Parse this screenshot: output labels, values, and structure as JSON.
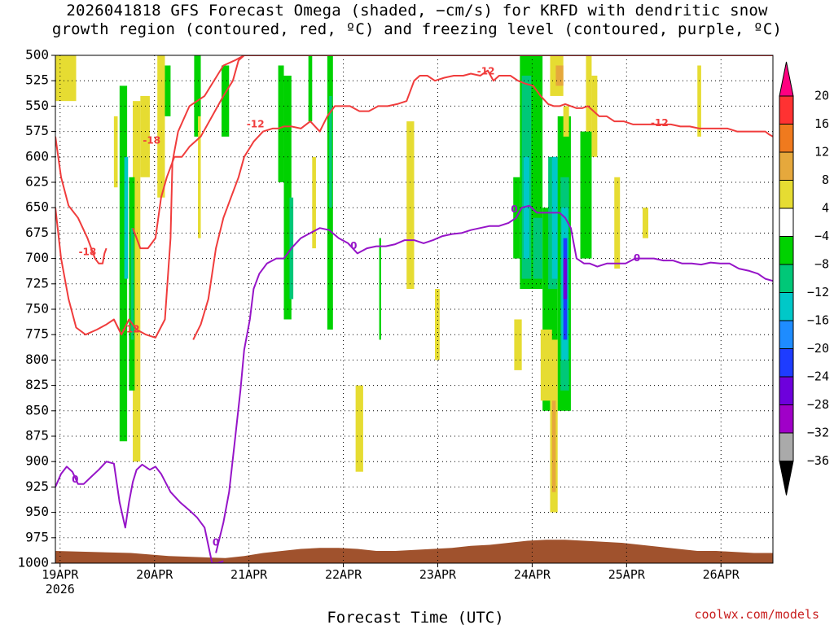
{
  "title_lines": [
    "2026041818 GFS Forecast Omega (shaded, −cm/s) for KRFD with dendritic snow",
    "growth region (contoured, red, ºC) and freezing level (contoured, purple, ºC)"
  ],
  "credit": "coolwx.com/models",
  "chart_data": {
    "type": "heatmap",
    "title": "2026041818 GFS Forecast Omega (shaded, −cm/s) for KRFD with dendritic snow growth region (contoured, red, ºC) and freezing level (contoured, purple, ºC)",
    "xlabel": "Forecast Time (UTC)",
    "ylabel": "",
    "x_unit": "days since 2026-04-18 18Z",
    "xlim": [
      0.2,
      7.8
    ],
    "ylim": [
      1000,
      500
    ],
    "y_ticks": [
      500,
      525,
      550,
      575,
      600,
      625,
      650,
      675,
      700,
      725,
      750,
      775,
      800,
      825,
      850,
      875,
      900,
      925,
      950,
      975,
      1000
    ],
    "x_ticks": [
      {
        "x": 0.25,
        "label": "19APR",
        "sub": "2026"
      },
      {
        "x": 1.25,
        "label": "20APR"
      },
      {
        "x": 2.25,
        "label": "21APR"
      },
      {
        "x": 3.25,
        "label": "22APR"
      },
      {
        "x": 4.25,
        "label": "23APR"
      },
      {
        "x": 5.25,
        "label": "24APR"
      },
      {
        "x": 6.25,
        "label": "25APR"
      },
      {
        "x": 7.25,
        "label": "26APR"
      }
    ],
    "grid": true,
    "colorbar": {
      "labels": [
        20,
        16,
        12,
        8,
        4,
        -4,
        -8,
        -12,
        -16,
        -20,
        -24,
        -28,
        -32,
        -36
      ],
      "colors": [
        "#ff0080",
        "#ff3232",
        "#f07a1e",
        "#e6a83c",
        "#e6dc32",
        "#ffffff",
        "#00d200",
        "#00c878",
        "#00c8c8",
        "#1e8cff",
        "#1e3cff",
        "#6e00dc",
        "#a000c8",
        "#aaaaaa",
        "#000000"
      ]
    },
    "omega_cells": [
      {
        "x0": 0.2,
        "x1": 0.42,
        "p_top": 500,
        "p_bot": 545,
        "v": 6
      },
      {
        "x0": 0.82,
        "x1": 0.86,
        "p_top": 560,
        "p_bot": 630,
        "v": 6
      },
      {
        "x0": 1.02,
        "x1": 1.1,
        "p_top": 545,
        "p_bot": 900,
        "v": 6
      },
      {
        "x0": 1.1,
        "x1": 1.2,
        "p_top": 540,
        "p_bot": 620,
        "v": 6
      },
      {
        "x0": 0.88,
        "x1": 0.96,
        "p_top": 530,
        "p_bot": 880,
        "v": -6
      },
      {
        "x0": 0.93,
        "x1": 0.97,
        "p_top": 600,
        "p_bot": 720,
        "v": -14
      },
      {
        "x0": 0.98,
        "x1": 1.04,
        "p_top": 620,
        "p_bot": 830,
        "v": -6
      },
      {
        "x0": 1.0,
        "x1": 1.03,
        "p_top": 670,
        "p_bot": 780,
        "v": -10
      },
      {
        "x0": 1.28,
        "x1": 1.36,
        "p_top": 500,
        "p_bot": 640,
        "v": 6
      },
      {
        "x0": 1.36,
        "x1": 1.42,
        "p_top": 510,
        "p_bot": 560,
        "v": -6
      },
      {
        "x0": 1.67,
        "x1": 1.74,
        "p_top": 500,
        "p_bot": 580,
        "v": -6
      },
      {
        "x0": 1.71,
        "x1": 1.74,
        "p_top": 560,
        "p_bot": 680,
        "v": 6
      },
      {
        "x0": 1.96,
        "x1": 2.04,
        "p_top": 510,
        "p_bot": 580,
        "v": -6
      },
      {
        "x0": 2.56,
        "x1": 2.62,
        "p_top": 510,
        "p_bot": 625,
        "v": -6
      },
      {
        "x0": 2.62,
        "x1": 2.7,
        "p_top": 520,
        "p_bot": 760,
        "v": -6
      },
      {
        "x0": 2.68,
        "x1": 2.72,
        "p_top": 640,
        "p_bot": 740,
        "v": -10
      },
      {
        "x0": 2.88,
        "x1": 2.92,
        "p_top": 500,
        "p_bot": 565,
        "v": -6
      },
      {
        "x0": 3.08,
        "x1": 3.14,
        "p_top": 500,
        "p_bot": 770,
        "v": -6
      },
      {
        "x0": 3.1,
        "x1": 3.13,
        "p_top": 540,
        "p_bot": 650,
        "v": -10
      },
      {
        "x0": 2.92,
        "x1": 2.96,
        "p_top": 600,
        "p_bot": 690,
        "v": 6
      },
      {
        "x0": 3.92,
        "x1": 4.0,
        "p_top": 565,
        "p_bot": 730,
        "v": 6
      },
      {
        "x0": 3.38,
        "x1": 3.46,
        "p_top": 825,
        "p_bot": 910,
        "v": 6
      },
      {
        "x0": 3.63,
        "x1": 3.65,
        "p_top": 680,
        "p_bot": 780,
        "v": -6
      },
      {
        "x0": 4.22,
        "x1": 4.27,
        "p_top": 730,
        "p_bot": 800,
        "v": 6
      },
      {
        "x0": 5.05,
        "x1": 5.12,
        "p_top": 620,
        "p_bot": 700,
        "v": -6
      },
      {
        "x0": 5.12,
        "x1": 5.36,
        "p_top": 500,
        "p_bot": 730,
        "v": -6
      },
      {
        "x0": 5.14,
        "x1": 5.24,
        "p_top": 520,
        "p_bot": 720,
        "v": -10
      },
      {
        "x0": 5.16,
        "x1": 5.22,
        "p_top": 600,
        "p_bot": 700,
        "v": -14
      },
      {
        "x0": 5.26,
        "x1": 5.36,
        "p_top": 660,
        "p_bot": 720,
        "v": -10
      },
      {
        "x0": 5.36,
        "x1": 5.52,
        "p_top": 650,
        "p_bot": 850,
        "v": -6
      },
      {
        "x0": 5.42,
        "x1": 5.52,
        "p_top": 600,
        "p_bot": 730,
        "v": -10
      },
      {
        "x0": 5.46,
        "x1": 5.62,
        "p_top": 600,
        "p_bot": 720,
        "v": -14
      },
      {
        "x0": 5.52,
        "x1": 5.66,
        "p_top": 560,
        "p_bot": 850,
        "v": -6
      },
      {
        "x0": 5.55,
        "x1": 5.64,
        "p_top": 620,
        "p_bot": 830,
        "v": -10
      },
      {
        "x0": 5.56,
        "x1": 5.63,
        "p_top": 650,
        "p_bot": 800,
        "v": -14
      },
      {
        "x0": 5.58,
        "x1": 5.62,
        "p_top": 680,
        "p_bot": 780,
        "v": -20
      },
      {
        "x0": 5.58,
        "x1": 5.62,
        "p_top": 700,
        "p_bot": 740,
        "v": -24
      },
      {
        "x0": 5.34,
        "x1": 5.46,
        "p_top": 770,
        "p_bot": 840,
        "v": 6
      },
      {
        "x0": 5.44,
        "x1": 5.52,
        "p_top": 780,
        "p_bot": 950,
        "v": 6
      },
      {
        "x0": 5.46,
        "x1": 5.5,
        "p_top": 840,
        "p_bot": 930,
        "v": 10
      },
      {
        "x0": 5.06,
        "x1": 5.14,
        "p_top": 760,
        "p_bot": 810,
        "v": 6
      },
      {
        "x0": 5.44,
        "x1": 5.58,
        "p_top": 500,
        "p_bot": 540,
        "v": 6
      },
      {
        "x0": 5.5,
        "x1": 5.58,
        "p_top": 510,
        "p_bot": 530,
        "v": 10
      },
      {
        "x0": 5.58,
        "x1": 5.64,
        "p_top": 550,
        "p_bot": 580,
        "v": 6
      },
      {
        "x0": 5.76,
        "x1": 5.88,
        "p_top": 575,
        "p_bot": 700,
        "v": -6
      },
      {
        "x0": 5.88,
        "x1": 5.94,
        "p_top": 520,
        "p_bot": 600,
        "v": 6
      },
      {
        "x0": 5.82,
        "x1": 5.88,
        "p_top": 500,
        "p_bot": 575,
        "v": 6
      },
      {
        "x0": 6.12,
        "x1": 6.18,
        "p_top": 620,
        "p_bot": 710,
        "v": 6
      },
      {
        "x0": 6.42,
        "x1": 6.48,
        "p_top": 650,
        "p_bot": 680,
        "v": 6
      },
      {
        "x0": 7.0,
        "x1": 7.04,
        "p_top": 510,
        "p_bot": 580,
        "v": 6
      }
    ],
    "contours": [
      {
        "kind": "dgz",
        "label": "-12",
        "color": "#f03c3c",
        "x": [
          0.2,
          0.26,
          0.34,
          0.42,
          0.52,
          0.64,
          0.74,
          0.82,
          0.9,
          0.98,
          1.06,
          1.16,
          1.26,
          1.36,
          1.42,
          1.44,
          1.5,
          1.62,
          1.78,
          1.98,
          2.1,
          2.2,
          2.32,
          2.44,
          2.56,
          2.64,
          2.72,
          2.8,
          2.9,
          3.0,
          3.1,
          3.16,
          3.24,
          3.34,
          3.46,
          3.6,
          3.74,
          3.86,
          3.96,
          4.06,
          4.16,
          4.26,
          4.36,
          4.46,
          4.54,
          4.64,
          4.74,
          4.86,
          4.98,
          5.06,
          5.14,
          5.22,
          5.3,
          5.38,
          5.46,
          5.54,
          5.62,
          5.7,
          5.78,
          5.84,
          5.9,
          6.0,
          6.1,
          6.2,
          6.3,
          6.4,
          6.5,
          6.6,
          6.7,
          6.8,
          6.9,
          7.0,
          7.1,
          7.2,
          7.3,
          7.4,
          7.5,
          7.6,
          7.68,
          7.72,
          7.78,
          7.8
        ],
        "p": [
          650,
          700,
          740,
          768,
          775,
          770,
          765,
          760,
          775,
          760,
          770,
          775,
          778,
          760,
          680,
          605,
          575,
          550,
          540,
          510,
          505,
          500,
          500,
          500,
          500,
          500,
          500,
          500,
          500,
          500,
          500,
          500,
          500,
          500,
          500,
          500,
          500,
          500,
          500,
          500,
          500,
          500,
          500,
          500,
          500,
          500,
          500,
          500,
          500,
          500,
          500,
          500,
          500,
          500,
          500,
          500,
          500,
          500,
          500,
          500,
          500,
          500,
          500,
          500,
          500,
          500,
          500,
          500,
          500,
          500,
          500,
          500,
          500,
          500,
          500,
          500,
          500,
          500,
          500,
          500,
          500,
          500
        ]
      },
      {
        "kind": "dgz",
        "label": "-18",
        "color": "#f03c3c",
        "x": [
          0.2,
          0.26,
          0.34,
          0.44,
          0.54,
          0.62,
          0.66,
          0.7,
          0.72,
          0.74
        ],
        "p": [
          580,
          620,
          648,
          660,
          680,
          700,
          705,
          705,
          695,
          690
        ]
      },
      {
        "kind": "dgz",
        "label": "-18",
        "color": "#f03c3c",
        "x": [
          1.02,
          1.1,
          1.18,
          1.26,
          1.32,
          1.38,
          1.46,
          1.54,
          1.62,
          1.74,
          1.86,
          1.98,
          2.08,
          2.14,
          2.2,
          2.26,
          2.34,
          2.4,
          2.46
        ],
        "p": [
          670,
          690,
          690,
          680,
          640,
          620,
          600,
          600,
          590,
          580,
          560,
          540,
          525,
          505,
          500,
          500,
          500,
          500,
          500
        ]
      },
      {
        "kind": "dgz",
        "label": "-12",
        "color": "#f03c3c",
        "x": [
          1.66,
          1.74,
          1.82,
          1.9,
          1.98,
          2.06,
          2.14,
          2.2,
          2.3,
          2.4,
          2.5,
          2.56,
          2.62,
          2.7,
          2.8,
          2.9,
          3.0,
          3.08,
          3.16,
          3.24,
          3.32,
          3.42,
          3.52,
          3.62,
          3.72,
          3.82,
          3.92,
          4.0,
          4.06,
          4.14,
          4.22,
          4.32,
          4.42,
          4.52,
          4.6,
          4.7,
          4.78,
          4.84,
          4.9,
          4.96,
          5.02,
          5.1,
          5.18,
          5.26,
          5.34,
          5.42,
          5.48,
          5.54,
          5.6,
          5.66,
          5.72,
          5.78,
          5.84,
          5.9,
          5.96,
          6.04,
          6.12,
          6.22,
          6.32,
          6.42,
          6.52,
          6.62,
          6.72,
          6.82,
          6.92,
          7.02,
          7.12,
          7.22,
          7.32,
          7.42,
          7.5,
          7.58,
          7.66,
          7.72,
          7.76,
          7.8
        ],
        "p": [
          780,
          765,
          740,
          690,
          660,
          640,
          620,
          600,
          585,
          575,
          572,
          572,
          570,
          570,
          572,
          565,
          575,
          560,
          550,
          550,
          550,
          555,
          555,
          550,
          550,
          548,
          545,
          525,
          520,
          520,
          525,
          522,
          520,
          520,
          518,
          520,
          515,
          525,
          520,
          520,
          520,
          525,
          528,
          530,
          540,
          548,
          550,
          550,
          548,
          550,
          552,
          552,
          550,
          555,
          560,
          560,
          565,
          565,
          568,
          568,
          568,
          568,
          568,
          570,
          570,
          572,
          572,
          572,
          572,
          575,
          575,
          575,
          575,
          575,
          578,
          580
        ]
      },
      {
        "kind": "frz",
        "label": "0",
        "color": "#9614c8",
        "x": [
          0.2,
          0.26,
          0.32,
          0.38,
          0.44,
          0.5,
          0.58,
          0.66,
          0.74,
          0.82,
          0.88,
          0.94,
          0.98,
          1.02,
          1.06,
          1.12,
          1.2,
          1.26,
          1.32,
          1.42,
          1.52,
          1.62,
          1.7,
          1.78,
          1.86,
          1.92,
          1.98
        ],
        "p": [
          925,
          912,
          905,
          910,
          922,
          922,
          915,
          908,
          900,
          902,
          940,
          965,
          940,
          920,
          908,
          903,
          908,
          905,
          912,
          930,
          940,
          948,
          955,
          965,
          1000,
          1000,
          998
        ]
      },
      {
        "kind": "frz",
        "label": "0",
        "color": "#9614c8",
        "x": [
          1.9,
          1.98,
          2.04,
          2.1,
          2.16,
          2.2,
          2.26,
          2.3,
          2.36,
          2.44,
          2.54,
          2.62,
          2.7,
          2.8,
          2.9,
          3.0,
          3.1,
          3.2,
          3.3,
          3.4,
          3.5,
          3.6,
          3.7,
          3.8,
          3.9,
          4.0,
          4.1,
          4.2,
          4.3,
          4.4,
          4.5,
          4.6,
          4.7,
          4.8,
          4.9,
          5.0,
          5.08,
          5.14,
          5.22,
          5.3,
          5.38,
          5.46,
          5.54,
          5.6,
          5.66,
          5.72,
          5.8,
          5.86,
          5.94,
          6.04,
          6.14,
          6.24,
          6.34,
          6.44,
          6.54,
          6.64,
          6.74,
          6.84,
          6.94,
          7.04,
          7.14,
          7.24,
          7.34,
          7.44,
          7.54,
          7.64,
          7.72,
          7.8
        ],
        "p": [
          990,
          960,
          930,
          880,
          830,
          790,
          760,
          730,
          715,
          705,
          700,
          700,
          690,
          680,
          675,
          670,
          672,
          680,
          685,
          695,
          690,
          688,
          688,
          686,
          682,
          682,
          685,
          682,
          678,
          676,
          675,
          672,
          670,
          668,
          668,
          665,
          660,
          650,
          648,
          655,
          655,
          655,
          655,
          660,
          670,
          700,
          705,
          705,
          708,
          705,
          705,
          705,
          700,
          700,
          700,
          702,
          702,
          705,
          705,
          706,
          704,
          705,
          705,
          710,
          712,
          715,
          720,
          722
        ]
      }
    ],
    "contour_labels": [
      {
        "x": 0.54,
        "p": 694,
        "text": "-18",
        "color": "#f03c3c"
      },
      {
        "x": 1.22,
        "p": 584,
        "text": "-18",
        "color": "#f03c3c"
      },
      {
        "x": 2.32,
        "p": 568,
        "text": "-12",
        "color": "#f03c3c"
      },
      {
        "x": 4.76,
        "p": 516,
        "text": "-12",
        "color": "#f03c3c"
      },
      {
        "x": 6.6,
        "p": 567,
        "text": "-12",
        "color": "#f03c3c"
      },
      {
        "x": 1.0,
        "p": 770,
        "text": "-12",
        "color": "#f03c3c"
      },
      {
        "x": 0.41,
        "p": 918,
        "text": "0",
        "color": "#9614c8"
      },
      {
        "x": 1.9,
        "p": 980,
        "text": "0",
        "color": "#9614c8"
      },
      {
        "x": 3.36,
        "p": 688,
        "text": "0",
        "color": "#9614c8"
      },
      {
        "x": 5.06,
        "p": 652,
        "text": "0",
        "color": "#9614c8"
      },
      {
        "x": 6.36,
        "p": 700,
        "text": "0",
        "color": "#9614c8"
      }
    ],
    "terrain": {
      "color": "#a0522d",
      "x": [
        0.2,
        1.0,
        1.4,
        1.7,
        2.0,
        2.2,
        2.4,
        2.6,
        2.8,
        3.0,
        3.2,
        3.4,
        3.6,
        3.8,
        4.0,
        4.2,
        4.4,
        4.6,
        4.8,
        5.0,
        5.2,
        5.4,
        5.6,
        5.8,
        6.0,
        6.2,
        6.4,
        6.6,
        6.8,
        7.0,
        7.2,
        7.4,
        7.6,
        7.8
      ],
      "p": [
        988,
        990,
        993,
        994,
        995,
        993,
        990,
        988,
        986,
        985,
        985,
        986,
        988,
        988,
        987,
        986,
        985,
        983,
        982,
        980,
        978,
        977,
        977,
        978,
        979,
        980,
        982,
        984,
        986,
        988,
        988,
        989,
        990,
        990
      ]
    }
  }
}
